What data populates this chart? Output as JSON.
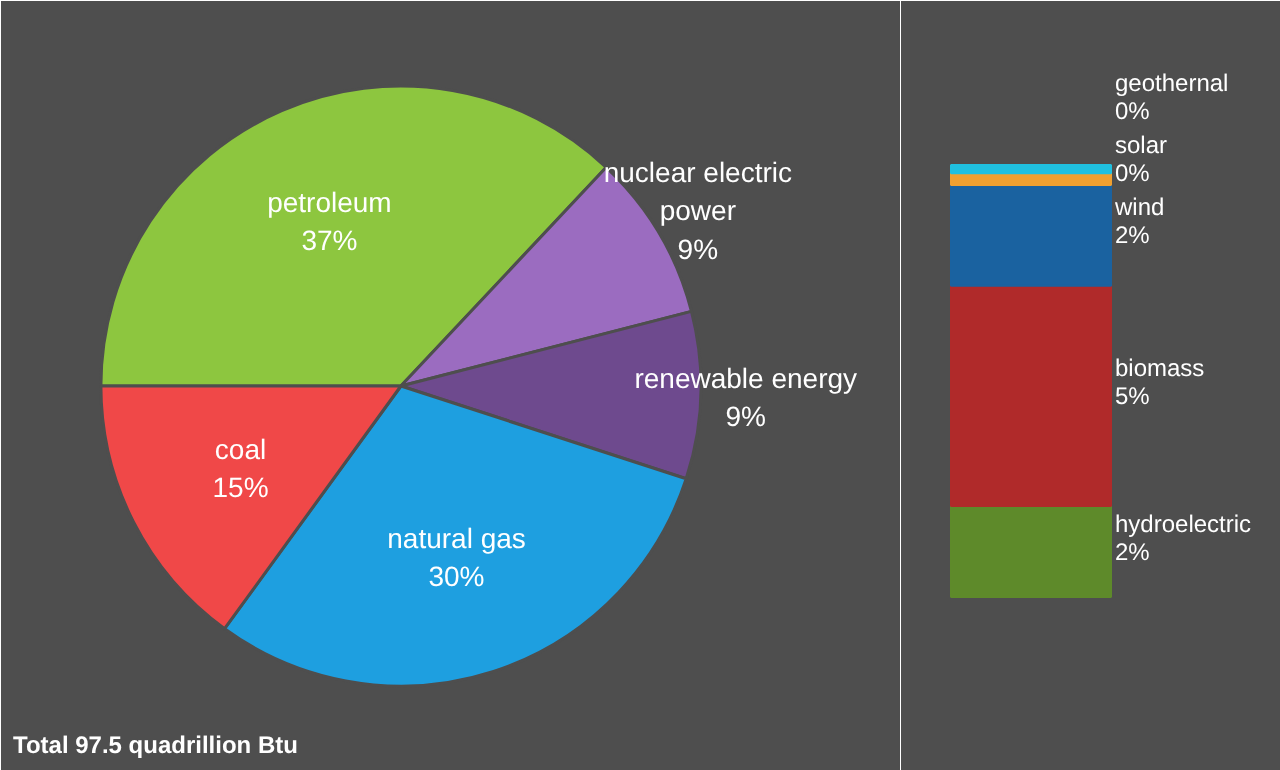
{
  "chart_data": [
    {
      "type": "pie",
      "categories": [
        "petroleum",
        "nuclear electric power",
        "renewable energy",
        "natural gas",
        "coal"
      ],
      "values": [
        37,
        9,
        9,
        30,
        15
      ],
      "value_labels": [
        "37%",
        "9%",
        "9%",
        "30%",
        "15%"
      ],
      "colors": [
        "#8dc63f",
        "#9b6cc0",
        "#6e4a8e",
        "#1e9fe0",
        "#f04848"
      ],
      "annotations": [
        "Total 97.5 quadrillion Btu"
      ]
    },
    {
      "type": "bar",
      "stacked": true,
      "categories": [
        null
      ],
      "series": [
        {
          "name": "hydroelectric",
          "color": "#5e8a2a",
          "values": [
            1.9
          ],
          "value_labels": [
            "2%"
          ]
        },
        {
          "name": "biomass",
          "color": "#b02a2a",
          "values": [
            4.6
          ],
          "value_labels": [
            "5%"
          ]
        },
        {
          "name": "wind",
          "color": "#1a62a0",
          "values": [
            2.1
          ],
          "value_labels": [
            "2%"
          ]
        },
        {
          "name": "solar",
          "color": "#f0a030",
          "values": [
            0.25
          ],
          "value_labels": [
            "0%"
          ]
        },
        {
          "name": "geothernal",
          "color": "#20c0e0",
          "values": [
            0.17
          ],
          "value_labels": [
            "0%"
          ]
        }
      ]
    }
  ]
}
